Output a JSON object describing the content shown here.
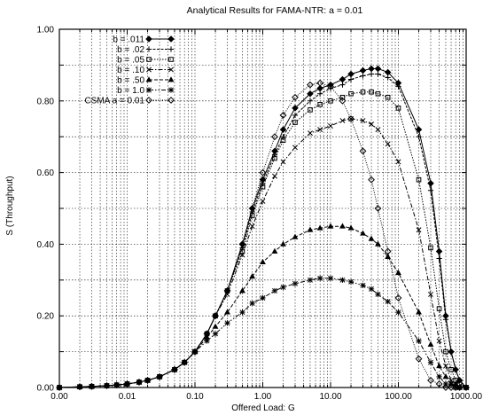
{
  "chart_data": {
    "type": "line",
    "title": "Analytical Results for FAMA-NTR: a = 0.01",
    "xlabel": "Offered Load: G",
    "ylabel": "S (Throughput)",
    "xscale": "log",
    "xlim": [
      0.001,
      1000
    ],
    "ylim": [
      0,
      1
    ],
    "xticks": [
      {
        "value": 0.001,
        "label": "0.00"
      },
      {
        "value": 0.01,
        "label": "0.01"
      },
      {
        "value": 0.1,
        "label": "0.10"
      },
      {
        "value": 1,
        "label": "1.00"
      },
      {
        "value": 10,
        "label": "10.00"
      },
      {
        "value": 100,
        "label": "100.00"
      },
      {
        "value": 1000,
        "label": "1000.00"
      }
    ],
    "yticks": [
      {
        "value": 0,
        "label": "0.00"
      },
      {
        "value": 0.2,
        "label": "0.20"
      },
      {
        "value": 0.4,
        "label": "0.40"
      },
      {
        "value": 0.6,
        "label": "0.60"
      },
      {
        "value": 0.8,
        "label": "0.80"
      },
      {
        "value": 1,
        "label": "1.00"
      }
    ],
    "grid": true,
    "legend_position": "top-left",
    "series": [
      {
        "name": "b = .011",
        "marker": "diamond-filled",
        "dash": "",
        "x": [
          0.001,
          0.002,
          0.003,
          0.005,
          0.007,
          0.01,
          0.015,
          0.02,
          0.03,
          0.05,
          0.07,
          0.1,
          0.15,
          0.2,
          0.3,
          0.5,
          0.7,
          1,
          1.5,
          2,
          3,
          5,
          7,
          10,
          15,
          20,
          30,
          40,
          50,
          70,
          100,
          200,
          300,
          400,
          500,
          600,
          700,
          800,
          1000
        ],
        "y": [
          0,
          0.002,
          0.003,
          0.005,
          0.007,
          0.01,
          0.015,
          0.02,
          0.03,
          0.05,
          0.07,
          0.1,
          0.15,
          0.2,
          0.27,
          0.4,
          0.5,
          0.58,
          0.66,
          0.72,
          0.78,
          0.82,
          0.835,
          0.845,
          0.86,
          0.875,
          0.885,
          0.89,
          0.89,
          0.88,
          0.85,
          0.72,
          0.57,
          0.38,
          0.2,
          0.1,
          0.05,
          0.02,
          0
        ]
      },
      {
        "name": "b = .02",
        "marker": "plus",
        "dash": "3 1.5",
        "x": [
          0.001,
          0.002,
          0.003,
          0.005,
          0.007,
          0.01,
          0.015,
          0.02,
          0.03,
          0.05,
          0.07,
          0.1,
          0.15,
          0.2,
          0.3,
          0.5,
          0.7,
          1,
          1.5,
          2,
          3,
          5,
          7,
          10,
          15,
          20,
          30,
          40,
          50,
          70,
          100,
          200,
          300,
          400,
          500,
          600,
          700,
          800,
          1000
        ],
        "y": [
          0,
          0.002,
          0.003,
          0.005,
          0.007,
          0.01,
          0.015,
          0.02,
          0.03,
          0.05,
          0.07,
          0.1,
          0.15,
          0.2,
          0.27,
          0.39,
          0.49,
          0.57,
          0.65,
          0.7,
          0.76,
          0.8,
          0.82,
          0.835,
          0.845,
          0.86,
          0.87,
          0.875,
          0.875,
          0.865,
          0.84,
          0.7,
          0.55,
          0.36,
          0.19,
          0.1,
          0.05,
          0.02,
          0
        ]
      },
      {
        "name": "b = .05",
        "marker": "square",
        "dash": "1.5 1.5",
        "x": [
          0.001,
          0.002,
          0.003,
          0.005,
          0.007,
          0.01,
          0.015,
          0.02,
          0.03,
          0.05,
          0.07,
          0.1,
          0.15,
          0.2,
          0.3,
          0.5,
          0.7,
          1,
          1.5,
          2,
          3,
          5,
          7,
          10,
          15,
          20,
          30,
          40,
          50,
          70,
          100,
          200,
          300,
          400,
          500,
          600,
          700,
          800,
          1000
        ],
        "y": [
          0,
          0.002,
          0.003,
          0.005,
          0.007,
          0.01,
          0.015,
          0.02,
          0.03,
          0.05,
          0.07,
          0.1,
          0.15,
          0.2,
          0.27,
          0.38,
          0.48,
          0.56,
          0.64,
          0.69,
          0.74,
          0.775,
          0.79,
          0.8,
          0.81,
          0.82,
          0.825,
          0.825,
          0.82,
          0.81,
          0.78,
          0.58,
          0.39,
          0.22,
          0.1,
          0.05,
          0.02,
          0.01,
          0
        ]
      },
      {
        "name": "b = .10",
        "marker": "x",
        "dash": "5 2 1.5 2",
        "x": [
          0.001,
          0.002,
          0.003,
          0.005,
          0.007,
          0.01,
          0.015,
          0.02,
          0.03,
          0.05,
          0.07,
          0.1,
          0.15,
          0.2,
          0.3,
          0.5,
          0.7,
          1,
          1.5,
          2,
          3,
          5,
          7,
          10,
          15,
          20,
          30,
          40,
          50,
          70,
          100,
          200,
          300,
          400,
          500,
          600,
          700,
          800,
          1000
        ],
        "y": [
          0,
          0.002,
          0.003,
          0.005,
          0.007,
          0.01,
          0.015,
          0.02,
          0.03,
          0.05,
          0.07,
          0.1,
          0.15,
          0.2,
          0.26,
          0.37,
          0.45,
          0.52,
          0.59,
          0.63,
          0.67,
          0.71,
          0.72,
          0.73,
          0.745,
          0.75,
          0.745,
          0.735,
          0.72,
          0.68,
          0.63,
          0.44,
          0.26,
          0.13,
          0.06,
          0.02,
          0.01,
          0,
          0
        ]
      },
      {
        "name": "b = .50",
        "marker": "triangle",
        "dash": "4 2",
        "x": [
          0.001,
          0.002,
          0.003,
          0.005,
          0.007,
          0.01,
          0.015,
          0.02,
          0.03,
          0.05,
          0.07,
          0.1,
          0.15,
          0.2,
          0.3,
          0.5,
          0.7,
          1,
          1.5,
          2,
          3,
          5,
          7,
          10,
          15,
          20,
          30,
          40,
          50,
          70,
          100,
          200,
          300,
          400,
          500,
          600,
          700,
          800,
          1000
        ],
        "y": [
          0,
          0.002,
          0.003,
          0.005,
          0.007,
          0.01,
          0.015,
          0.02,
          0.03,
          0.05,
          0.07,
          0.1,
          0.14,
          0.17,
          0.21,
          0.27,
          0.31,
          0.35,
          0.38,
          0.4,
          0.42,
          0.44,
          0.445,
          0.45,
          0.45,
          0.445,
          0.43,
          0.415,
          0.4,
          0.365,
          0.32,
          0.21,
          0.12,
          0.06,
          0.03,
          0.01,
          0.01,
          0,
          0
        ]
      },
      {
        "name": "b = 1.0",
        "marker": "star",
        "dash": "5 2 1.5 2 1.5 2",
        "x": [
          0.001,
          0.002,
          0.003,
          0.005,
          0.007,
          0.01,
          0.015,
          0.02,
          0.03,
          0.05,
          0.07,
          0.1,
          0.15,
          0.2,
          0.3,
          0.5,
          0.7,
          1,
          1.5,
          2,
          3,
          5,
          7,
          10,
          15,
          20,
          30,
          40,
          50,
          70,
          100,
          200,
          300,
          400,
          500,
          600,
          700,
          800,
          1000
        ],
        "y": [
          0,
          0.002,
          0.003,
          0.005,
          0.007,
          0.01,
          0.015,
          0.02,
          0.03,
          0.05,
          0.07,
          0.1,
          0.13,
          0.15,
          0.18,
          0.21,
          0.235,
          0.25,
          0.27,
          0.28,
          0.29,
          0.3,
          0.305,
          0.305,
          0.3,
          0.295,
          0.285,
          0.275,
          0.26,
          0.24,
          0.21,
          0.13,
          0.07,
          0.03,
          0.01,
          0.01,
          0,
          0,
          0
        ]
      },
      {
        "name": "CSMA a = 0.01",
        "marker": "diamond",
        "dash": "1 1.5",
        "x": [
          0.001,
          0.002,
          0.003,
          0.005,
          0.007,
          0.01,
          0.015,
          0.02,
          0.03,
          0.05,
          0.07,
          0.1,
          0.15,
          0.2,
          0.3,
          0.5,
          0.7,
          1,
          1.5,
          2,
          3,
          5,
          7,
          10,
          15,
          20,
          30,
          40,
          50,
          70,
          100,
          200,
          300,
          400,
          500,
          600,
          700,
          800,
          1000
        ],
        "y": [
          0,
          0.002,
          0.003,
          0.005,
          0.007,
          0.01,
          0.015,
          0.02,
          0.03,
          0.05,
          0.07,
          0.1,
          0.15,
          0.2,
          0.27,
          0.4,
          0.5,
          0.6,
          0.7,
          0.76,
          0.81,
          0.845,
          0.85,
          0.84,
          0.8,
          0.75,
          0.66,
          0.58,
          0.5,
          0.38,
          0.25,
          0.08,
          0.02,
          0.01,
          0,
          0,
          0,
          0,
          0
        ]
      }
    ]
  }
}
